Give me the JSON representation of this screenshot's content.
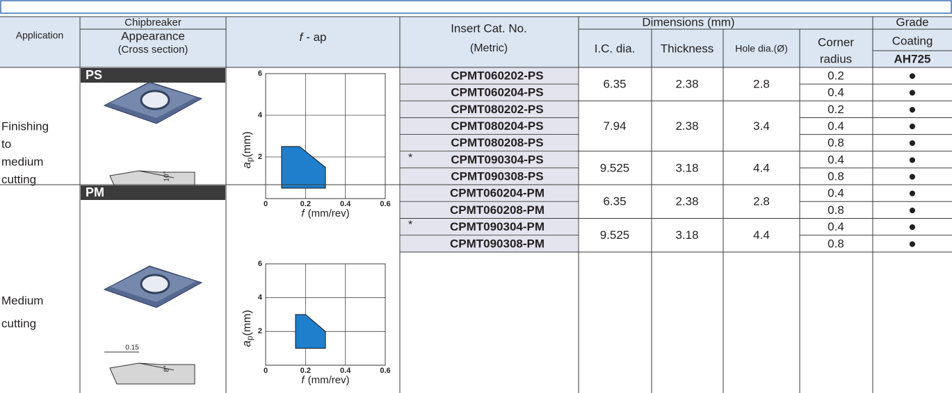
{
  "header": {
    "application": "Application",
    "chipbreaker": "Chipbreaker",
    "appearance": "Appearance",
    "cross_section": "(Cross section)",
    "f_ap": {
      "symbol": "f",
      "rest": "- ap"
    },
    "insert": "Insert Cat. No.",
    "metric": "(Metric)",
    "dimensions": "Dimensions (mm)",
    "ic": "I.C. dia.",
    "thickness": "Thickness",
    "hole": "Hole dia.(Ø)",
    "corner": [
      "Corner",
      "radius"
    ],
    "grade": "Grade",
    "coating": "Coating",
    "grade_name": "AH725"
  },
  "groups": [
    {
      "application": [
        "Finishing",
        "to",
        "medium",
        "cutting"
      ],
      "chipbreaker": "PS",
      "sketch": {
        "angle": "10°"
      },
      "chart": {
        "type": "area",
        "xlim": [
          0,
          0.6
        ],
        "ylim": [
          0,
          6
        ],
        "xticks": [
          0,
          0.2,
          0.4,
          0.6
        ],
        "yticks": [
          2,
          4,
          6
        ],
        "grid": true,
        "x": [
          0.08,
          0.08,
          0.17,
          0.3,
          0.3
        ],
        "y": [
          0.5,
          2.5,
          2.5,
          1.5,
          0.5
        ],
        "color": "#1f7fcc",
        "xlabel": {
          "symbol": "f",
          "unit": "(mm/rev)"
        },
        "ylabel": {
          "symbol": "a",
          "subscript": "p",
          "unit": "(mm)"
        }
      },
      "sizes": [
        {
          "ic": 6.35,
          "thickness": 2.38,
          "hole": 2.8,
          "inserts": [
            {
              "cat": "CPMT060202-PS",
              "corner": 0.2,
              "grade": "●"
            },
            {
              "cat": "CPMT060204-PS",
              "corner": 0.4,
              "grade": "●"
            }
          ]
        },
        {
          "ic": 7.94,
          "thickness": 2.38,
          "hole": 3.4,
          "inserts": [
            {
              "cat": "CPMT080202-PS",
              "corner": 0.2,
              "grade": "●"
            },
            {
              "cat": "CPMT080204-PS",
              "corner": 0.4,
              "grade": "●"
            },
            {
              "cat": "CPMT080208-PS",
              "corner": 0.8,
              "grade": "●"
            }
          ]
        },
        {
          "ic": 9.525,
          "thickness": 3.18,
          "hole": 4.4,
          "inserts": [
            {
              "cat": "CPMT090304-PS",
              "star": "*",
              "corner": 0.4,
              "grade": "●"
            },
            {
              "cat": "CPMT090308-PS",
              "corner": 0.8,
              "grade": "●"
            }
          ]
        }
      ]
    },
    {
      "application": [
        "Medium",
        "cutting"
      ],
      "chipbreaker": "PM",
      "sketch": {
        "width": "0.15",
        "angle": "8°"
      },
      "chart": {
        "type": "area",
        "xlim": [
          0,
          0.6
        ],
        "ylim": [
          0,
          6
        ],
        "xticks": [
          0,
          0.2,
          0.4,
          0.6
        ],
        "yticks": [
          2,
          4,
          6
        ],
        "grid": true,
        "x": [
          0.15,
          0.15,
          0.2,
          0.3,
          0.3
        ],
        "y": [
          1,
          3,
          3,
          2,
          1
        ],
        "color": "#1f7fcc",
        "xlabel": {
          "symbol": "f",
          "unit": "(mm/rev)"
        },
        "ylabel": {
          "symbol": "a",
          "subscript": "p",
          "unit": "(mm)"
        }
      },
      "sizes": [
        {
          "ic": 6.35,
          "thickness": 2.38,
          "hole": 2.8,
          "inserts": [
            {
              "cat": "CPMT060204-PM",
              "corner": 0.4,
              "grade": "●"
            },
            {
              "cat": "CPMT060208-PM",
              "corner": 0.8,
              "grade": "●"
            }
          ]
        },
        {
          "ic": 9.525,
          "thickness": 3.18,
          "hole": 4.4,
          "inserts": [
            {
              "cat": "CPMT090304-PM",
              "star": "*",
              "corner": 0.4,
              "grade": "●"
            },
            {
              "cat": "CPMT090308-PM",
              "corner": 0.8,
              "grade": "●"
            }
          ]
        }
      ]
    }
  ]
}
